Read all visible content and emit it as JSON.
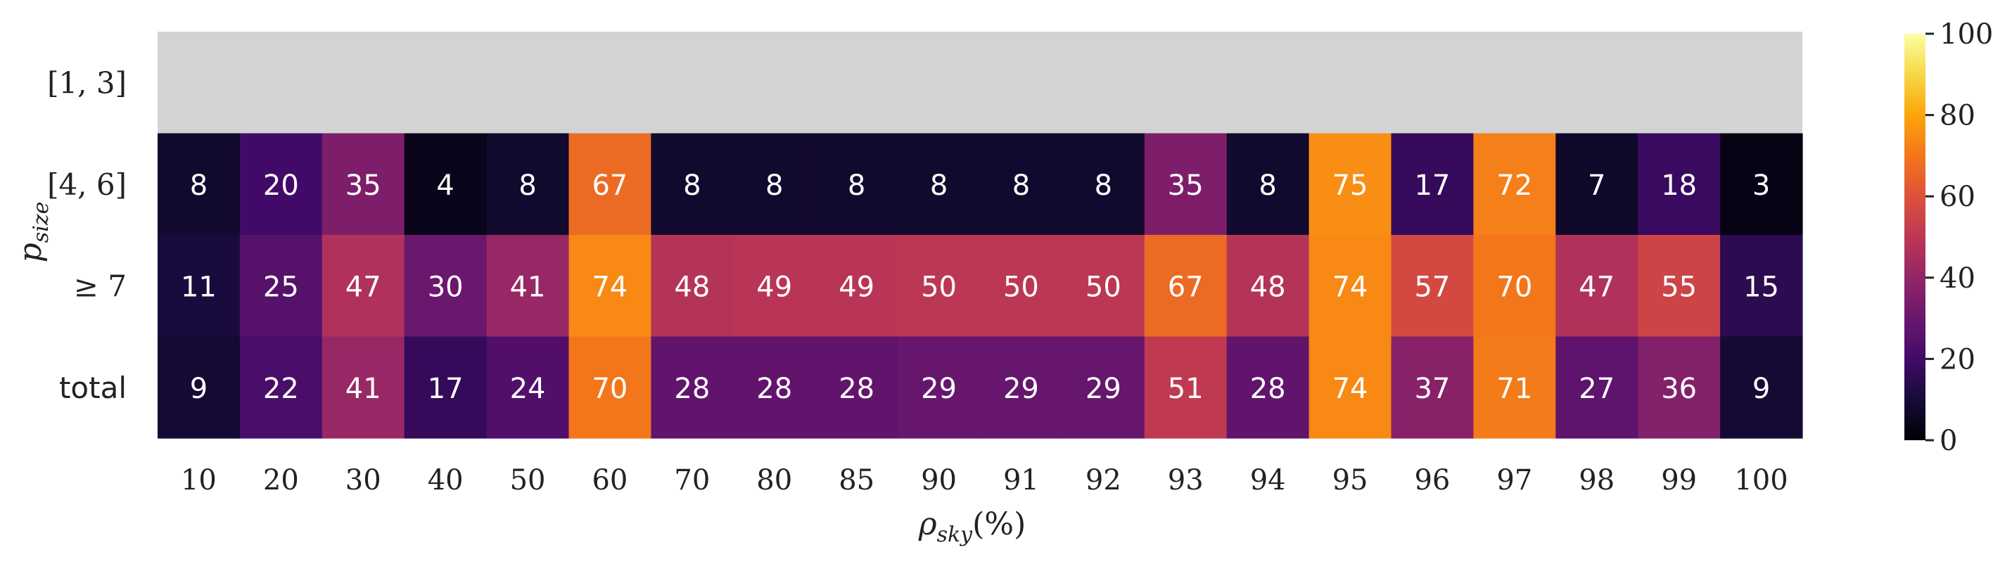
{
  "chart_data": {
    "type": "heatmap",
    "xlabel": "ρsky(%)",
    "ylabel": "psize",
    "columns": [
      "10",
      "20",
      "30",
      "40",
      "50",
      "60",
      "70",
      "80",
      "85",
      "90",
      "91",
      "92",
      "93",
      "94",
      "95",
      "96",
      "97",
      "98",
      "99",
      "100"
    ],
    "rows": [
      {
        "label": "[1, 3]",
        "values": [
          null,
          null,
          null,
          null,
          null,
          null,
          null,
          null,
          null,
          null,
          null,
          null,
          null,
          null,
          null,
          null,
          null,
          null,
          null,
          null
        ]
      },
      {
        "label": "[4, 6]",
        "values": [
          8,
          20,
          35,
          4,
          8,
          67,
          8,
          8,
          8,
          8,
          8,
          8,
          35,
          8,
          75,
          17,
          72,
          7,
          18,
          3
        ]
      },
      {
        "label": "≥ 7",
        "values": [
          11,
          25,
          47,
          30,
          41,
          74,
          48,
          49,
          49,
          50,
          50,
          50,
          67,
          48,
          74,
          57,
          70,
          47,
          55,
          15
        ]
      },
      {
        "label": "total",
        "values": [
          9,
          22,
          41,
          17,
          24,
          70,
          28,
          28,
          28,
          29,
          29,
          29,
          51,
          28,
          74,
          37,
          71,
          27,
          36,
          9
        ]
      }
    ],
    "colormap": "inferno",
    "missing_color": "#d3d3d3",
    "vmin": 0,
    "vmax": 100,
    "colorbar_ticks": [
      0,
      20,
      40,
      60,
      80,
      100
    ],
    "grid": false,
    "colorbar": "right"
  }
}
